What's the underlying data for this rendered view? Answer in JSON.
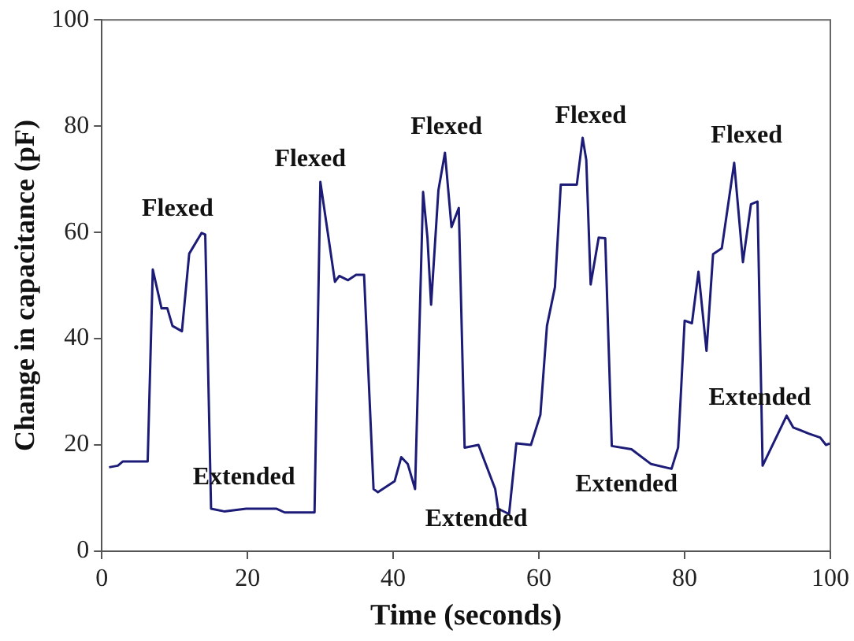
{
  "chart_data": {
    "type": "line",
    "xlabel": "Time (seconds)",
    "ylabel": "Change in capacitance (pF)",
    "x": [
      1,
      2.2,
      2.9,
      6.3,
      7,
      8.2,
      9,
      9.7,
      11,
      12,
      13.7,
      14.2,
      15,
      16.8,
      19.8,
      24,
      25.1,
      29.2,
      30,
      32,
      32.6,
      33.8,
      34.9,
      36,
      37.3,
      37.9,
      40.2,
      41.1,
      42,
      43,
      44.1,
      44.7,
      45.2,
      46.2,
      47.1,
      48,
      49,
      49.8,
      51.7,
      54,
      54.4,
      55.9,
      56.9,
      58.9,
      60.2,
      61.1,
      62.2,
      63,
      65.2,
      66,
      66.5,
      67.1,
      68.2,
      69.1,
      70,
      72.7,
      75.4,
      78.2,
      79.1,
      80,
      81,
      81.9,
      83,
      83.9,
      85.1,
      86.8,
      88,
      89.1,
      90,
      90.7,
      94,
      94.9,
      97.1,
      98.6,
      99.4,
      99.9
    ],
    "series": [
      {
        "color": "#1c1c78",
        "values": [
          15.8,
          16.1,
          16.9,
          16.9,
          53,
          45.7,
          45.7,
          42.4,
          41.4,
          56,
          59.9,
          59.6,
          8,
          7.5,
          8,
          8,
          7.3,
          7.3,
          69.5,
          50.7,
          51.8,
          51,
          52,
          52,
          11.7,
          11.1,
          13.2,
          17.7,
          16.4,
          11.7,
          67.6,
          59,
          46.4,
          67.9,
          75,
          61,
          64.6,
          19.5,
          20,
          11.7,
          8,
          7,
          20.3,
          20,
          25.7,
          42.4,
          49.7,
          69,
          69,
          77.8,
          73.6,
          50.2,
          59,
          58.9,
          19.8,
          19.2,
          16.4,
          15.5,
          19.5,
          43.4,
          42.9,
          52.6,
          37.7,
          55.9,
          57,
          73.1,
          54.4,
          65.3,
          65.8,
          16.1,
          25.5,
          23.3,
          22.1,
          21.4,
          20,
          20.3
        ]
      }
    ],
    "xlim": [
      0,
      100
    ],
    "xticks": [
      0,
      20,
      40,
      60,
      80,
      100
    ],
    "ylim": [
      0,
      100
    ],
    "yticks": [
      0,
      20,
      40,
      60,
      80,
      100
    ],
    "grid": false,
    "legend": false,
    "marker": "none",
    "line_style": "solid",
    "annotations": [
      "Flexed",
      "Flexed",
      "Flexed",
      "Flexed",
      "Flexed",
      "Extended",
      "Extended",
      "Extended",
      "Extended"
    ]
  }
}
